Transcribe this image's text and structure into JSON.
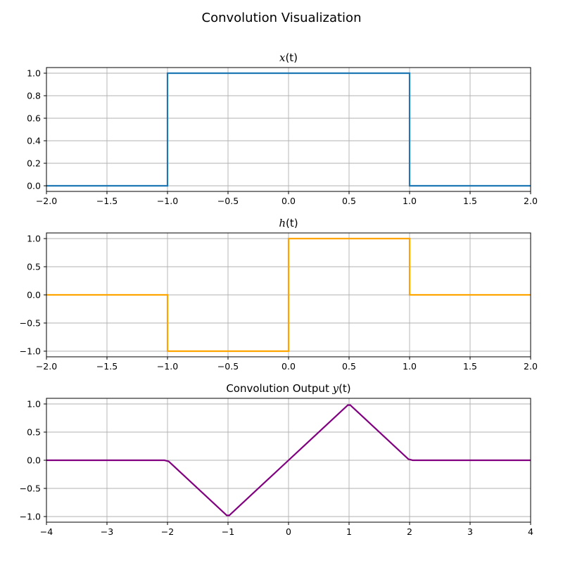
{
  "figure": {
    "title": "Convolution Visualization"
  },
  "chart_data": [
    {
      "type": "line",
      "title": {
        "prefix": "",
        "symbol": "x",
        "arg": "(t)"
      },
      "xlabel": "",
      "ylabel": "",
      "xlim": [
        -2,
        2
      ],
      "ylim": [
        -0.05,
        1.05
      ],
      "grid": true,
      "x_ticks": [
        -2.0,
        -1.5,
        -1.0,
        -0.5,
        0.0,
        0.5,
        1.0,
        1.5,
        2.0
      ],
      "x_tick_labels": [
        "−2.0",
        "−1.5",
        "−1.0",
        "−0.5",
        "0.0",
        "0.5",
        "1.0",
        "1.5",
        "2.0"
      ],
      "y_ticks": [
        0.0,
        0.2,
        0.4,
        0.6,
        0.8,
        1.0
      ],
      "y_tick_labels": [
        "0.0",
        "0.2",
        "0.4",
        "0.6",
        "0.8",
        "1.0"
      ],
      "series": [
        {
          "color": "#1f77b4",
          "x": [
            -2,
            -1,
            -1,
            1,
            1,
            2
          ],
          "y": [
            0,
            0,
            1,
            1,
            0,
            0
          ]
        }
      ]
    },
    {
      "type": "line",
      "title": {
        "prefix": "",
        "symbol": "h",
        "arg": "(t)"
      },
      "xlabel": "",
      "ylabel": "",
      "xlim": [
        -2,
        2
      ],
      "ylim": [
        -1.1,
        1.1
      ],
      "grid": true,
      "x_ticks": [
        -2.0,
        -1.5,
        -1.0,
        -0.5,
        0.0,
        0.5,
        1.0,
        1.5,
        2.0
      ],
      "x_tick_labels": [
        "−2.0",
        "−1.5",
        "−1.0",
        "−0.5",
        "0.0",
        "0.5",
        "1.0",
        "1.5",
        "2.0"
      ],
      "y_ticks": [
        -1.0,
        -0.5,
        0.0,
        0.5,
        1.0
      ],
      "y_tick_labels": [
        "−1.0",
        "−0.5",
        "0.0",
        "0.5",
        "1.0"
      ],
      "series": [
        {
          "color": "#ffa500",
          "x": [
            -2,
            -1,
            -1,
            0,
            0,
            1,
            1,
            2
          ],
          "y": [
            0,
            0,
            -1,
            -1,
            1,
            1,
            0,
            0
          ]
        }
      ]
    },
    {
      "type": "line",
      "title": {
        "prefix": "Convolution Output ",
        "symbol": "y",
        "arg": "(t)"
      },
      "xlabel": "",
      "ylabel": "",
      "xlim": [
        -4,
        4
      ],
      "ylim": [
        -1.1,
        1.1
      ],
      "grid": true,
      "x_ticks": [
        -4,
        -3,
        -2,
        -1,
        0,
        1,
        2,
        3,
        4
      ],
      "x_tick_labels": [
        "−4",
        "−3",
        "−2",
        "−1",
        "0",
        "1",
        "2",
        "3",
        "4"
      ],
      "y_ticks": [
        -1.0,
        -0.5,
        0.0,
        0.5,
        1.0
      ],
      "y_tick_labels": [
        "−1.0",
        "−0.5",
        "0.0",
        "0.5",
        "1.0"
      ],
      "series": [
        {
          "color": "#800080",
          "x": [
            -4,
            -2.05,
            -1.98,
            -1.02,
            -0.98,
            0,
            0.98,
            1.02,
            1.98,
            2.05,
            4
          ],
          "y": [
            0,
            0,
            -0.02,
            -0.98,
            -0.98,
            0,
            0.98,
            0.98,
            0.02,
            0,
            0
          ]
        }
      ]
    }
  ]
}
